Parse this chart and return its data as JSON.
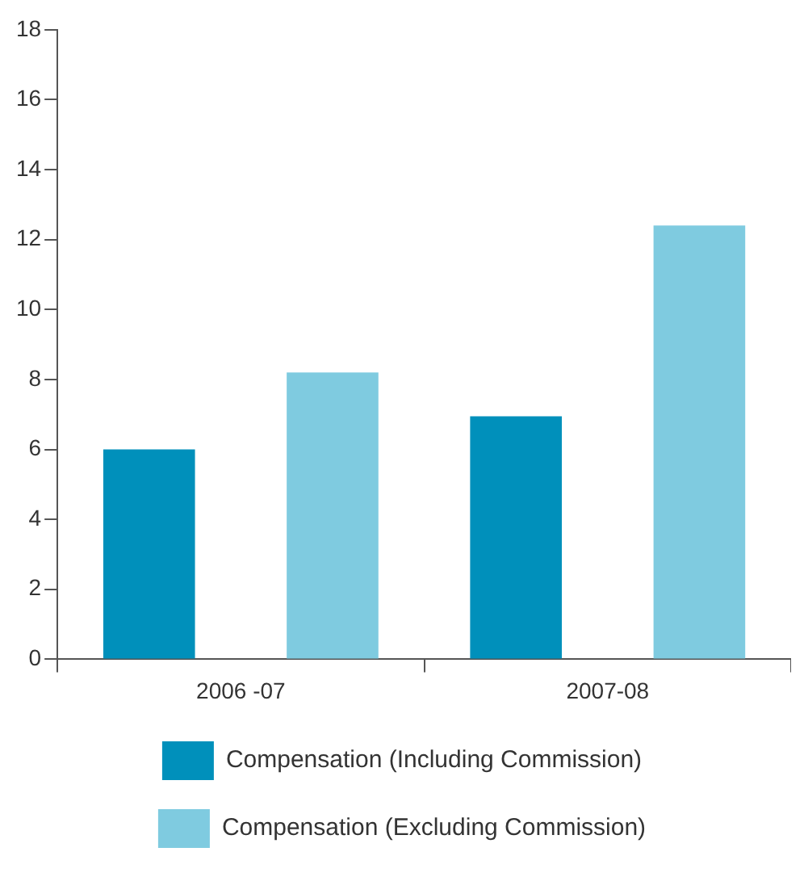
{
  "chart_data": {
    "type": "bar",
    "categories": [
      "2006 -07",
      "2007-08"
    ],
    "series": [
      {
        "name": "Compensation (Including Commission)",
        "color": "#0090bb",
        "values": [
          6.0,
          6.95
        ]
      },
      {
        "name": "Compensation (Excluding Commission)",
        "color": "#7fcbe0",
        "values": [
          8.2,
          12.4
        ]
      }
    ],
    "ylim": [
      0,
      18
    ],
    "yticks": [
      0,
      2,
      4,
      6,
      8,
      10,
      12,
      14,
      16,
      18
    ],
    "grid": false,
    "legend": "bottom"
  }
}
